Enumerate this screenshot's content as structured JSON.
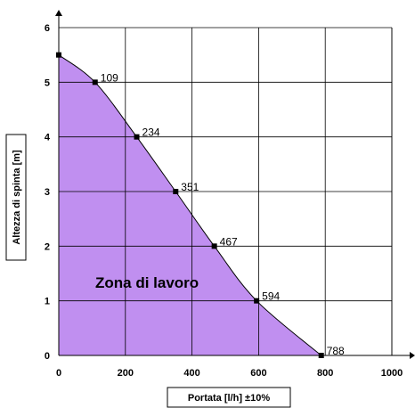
{
  "chart_data": {
    "type": "area",
    "xlabel": "Portata [l/h] ±10%",
    "ylabel": "Altezza di spinta [m]",
    "xlim": [
      0,
      1000
    ],
    "ylim": [
      0,
      6
    ],
    "x_ticks": [
      "0",
      "200",
      "400",
      "600",
      "800",
      "1000"
    ],
    "y_ticks": [
      "0",
      "1",
      "2",
      "3",
      "4",
      "5",
      "6"
    ],
    "grid": true,
    "series": [
      {
        "x": [
          0,
          109,
          234,
          351,
          467,
          594,
          788
        ],
        "y": [
          5.5,
          5,
          4,
          3,
          2,
          1,
          0
        ],
        "point_labels": [
          "",
          "109",
          "234",
          "351",
          "467",
          "594",
          "788"
        ]
      }
    ],
    "annotation": "Zona di lavoro",
    "colors": {
      "fill": "#c08ff0",
      "line": "#000000",
      "grid": "#000000"
    }
  }
}
